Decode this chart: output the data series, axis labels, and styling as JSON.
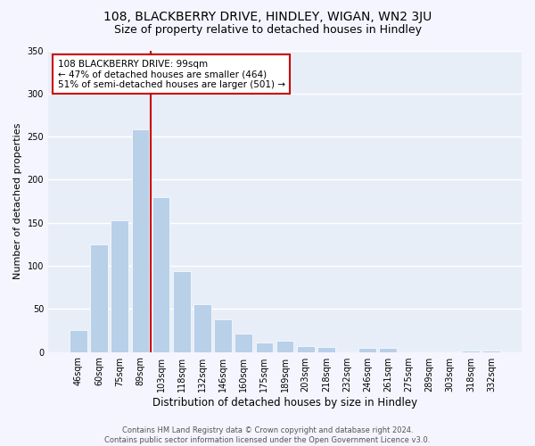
{
  "title": "108, BLACKBERRY DRIVE, HINDLEY, WIGAN, WN2 3JU",
  "subtitle": "Size of property relative to detached houses in Hindley",
  "xlabel": "Distribution of detached houses by size in Hindley",
  "ylabel": "Number of detached properties",
  "bar_labels": [
    "46sqm",
    "60sqm",
    "75sqm",
    "89sqm",
    "103sqm",
    "118sqm",
    "132sqm",
    "146sqm",
    "160sqm",
    "175sqm",
    "189sqm",
    "203sqm",
    "218sqm",
    "232sqm",
    "246sqm",
    "261sqm",
    "275sqm",
    "289sqm",
    "303sqm",
    "318sqm",
    "332sqm"
  ],
  "bar_values": [
    25,
    125,
    153,
    258,
    180,
    94,
    55,
    38,
    21,
    11,
    13,
    7,
    6,
    0,
    5,
    5,
    0,
    0,
    0,
    2,
    2
  ],
  "bar_color": "#b8d0e8",
  "bar_edgecolor": "#ffffff",
  "vline_color": "#cc0000",
  "annotation_box_edgecolor": "#cc0000",
  "annotation_box_facecolor": "#ffffff",
  "ylim": [
    0,
    350
  ],
  "yticks": [
    0,
    50,
    100,
    150,
    200,
    250,
    300,
    350
  ],
  "plot_bg_color": "#e8eef8",
  "fig_bg_color": "#f5f5ff",
  "grid_color": "#ffffff",
  "title_fontsize": 10,
  "subtitle_fontsize": 9,
  "xlabel_fontsize": 8.5,
  "ylabel_fontsize": 8,
  "tick_fontsize": 7,
  "annotation_fontsize": 7.5,
  "footer_fontsize": 6,
  "footer": "Contains HM Land Registry data © Crown copyright and database right 2024.\nContains public sector information licensed under the Open Government Licence v3.0.",
  "property_line_label": "108 BLACKBERRY DRIVE: 99sqm",
  "annotation_line1": "← 47% of detached houses are smaller (464)",
  "annotation_line2": "51% of semi-detached houses are larger (501) →"
}
